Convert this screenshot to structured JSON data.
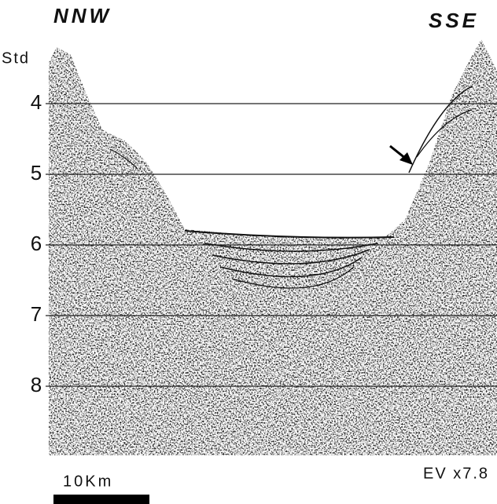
{
  "header": {
    "left": "NNW",
    "right": "SSE"
  },
  "axis": {
    "label": "Std",
    "ticks": [
      "4",
      "5",
      "6",
      "7",
      "8"
    ]
  },
  "scale_bar": "10Km",
  "exaggeration": "EV x7.8"
}
